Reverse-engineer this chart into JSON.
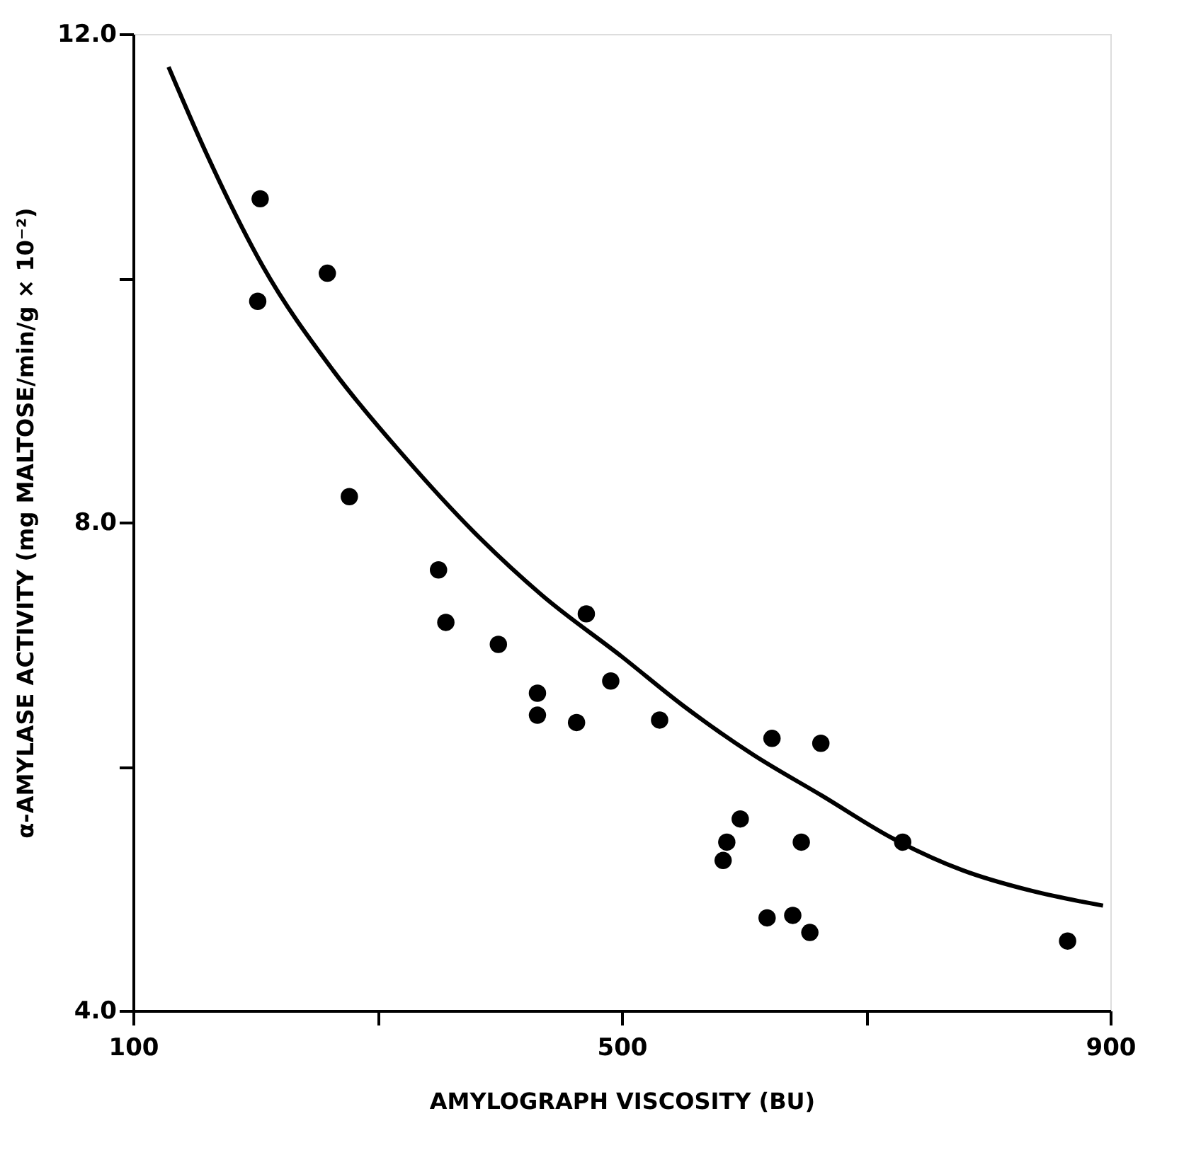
{
  "chart_data": {
    "type": "scatter",
    "xlabel": "AMYLOGRAPH VISCOSITY (BU)",
    "ylabel": "α-AMYLASE ACTIVITY (mg MALTOSE/min/g × 10⁻²)",
    "xlim": [
      100,
      900
    ],
    "xticks": [
      100,
      {
        "value": 300,
        "label": null
      },
      500,
      {
        "value": 700,
        "label": null
      },
      900
    ],
    "ylim": [
      4.0,
      12.0
    ],
    "yticks": [
      {
        "value": 4,
        "label": "4.0"
      },
      {
        "value": 6,
        "label": null
      },
      {
        "value": 8,
        "label": "8.0"
      },
      {
        "value": 10,
        "label": null
      },
      {
        "value": 12,
        "label": "12.0"
      }
    ],
    "grid": false,
    "series": [
      {
        "color": "#000000",
        "marker": "circle",
        "x": [
          204,
          202,
          259,
          277,
          350,
          356,
          399,
          431,
          431,
          471,
          463,
          491,
          531,
          623,
          663,
          597,
          586,
          583,
          647,
          730,
          619,
          640,
          654,
          865
        ],
        "values": [
          10.65,
          9.81,
          10.04,
          8.21,
          7.61,
          7.18,
          7.0,
          6.6,
          6.42,
          7.25,
          6.36,
          6.7,
          6.38,
          6.23,
          6.19,
          5.57,
          5.38,
          5.23,
          5.38,
          5.38,
          4.76,
          4.78,
          4.64,
          4.57
        ]
      },
      {
        "type": "line",
        "color": "#000000",
        "marker": "none",
        "line_style": "solid",
        "x": [
          129,
          160,
          206,
          264,
          321,
          379,
          435,
          500,
          550,
          607,
          664,
          722,
          779,
          836,
          894
        ],
        "values": [
          11.73,
          11.02,
          10.1,
          9.24,
          8.55,
          7.92,
          7.4,
          6.9,
          6.5,
          6.1,
          5.76,
          5.41,
          5.15,
          4.98,
          4.86
        ]
      }
    ]
  }
}
